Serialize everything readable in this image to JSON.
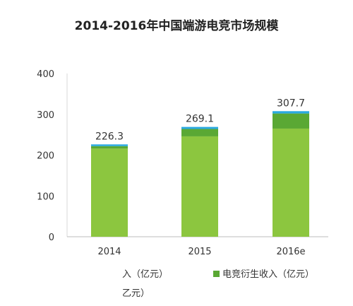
{
  "chart_data": {
    "type": "bar",
    "title": "2014-2016年中国端游电竞市场规模",
    "categories": [
      "2014",
      "2015",
      "2016e"
    ],
    "ylim": [
      0,
      400
    ],
    "yticks": [
      "0",
      "100",
      "200",
      "300",
      "400"
    ],
    "totals": [
      "226.3",
      "269.1",
      "307.7"
    ],
    "series": [
      {
        "name": "入（亿元）",
        "values": [
          216,
          246,
          265
        ],
        "color": "#8cc63f"
      },
      {
        "name": "电竞衍生收入（亿元）",
        "values": [
          6,
          18,
          37
        ],
        "color": "#5aa834"
      },
      {
        "name": "乙元）",
        "values": [
          4.3,
          5.1,
          5.7
        ],
        "color": "#2aa9e0"
      }
    ],
    "grid": false,
    "legend_position": "bottom"
  }
}
